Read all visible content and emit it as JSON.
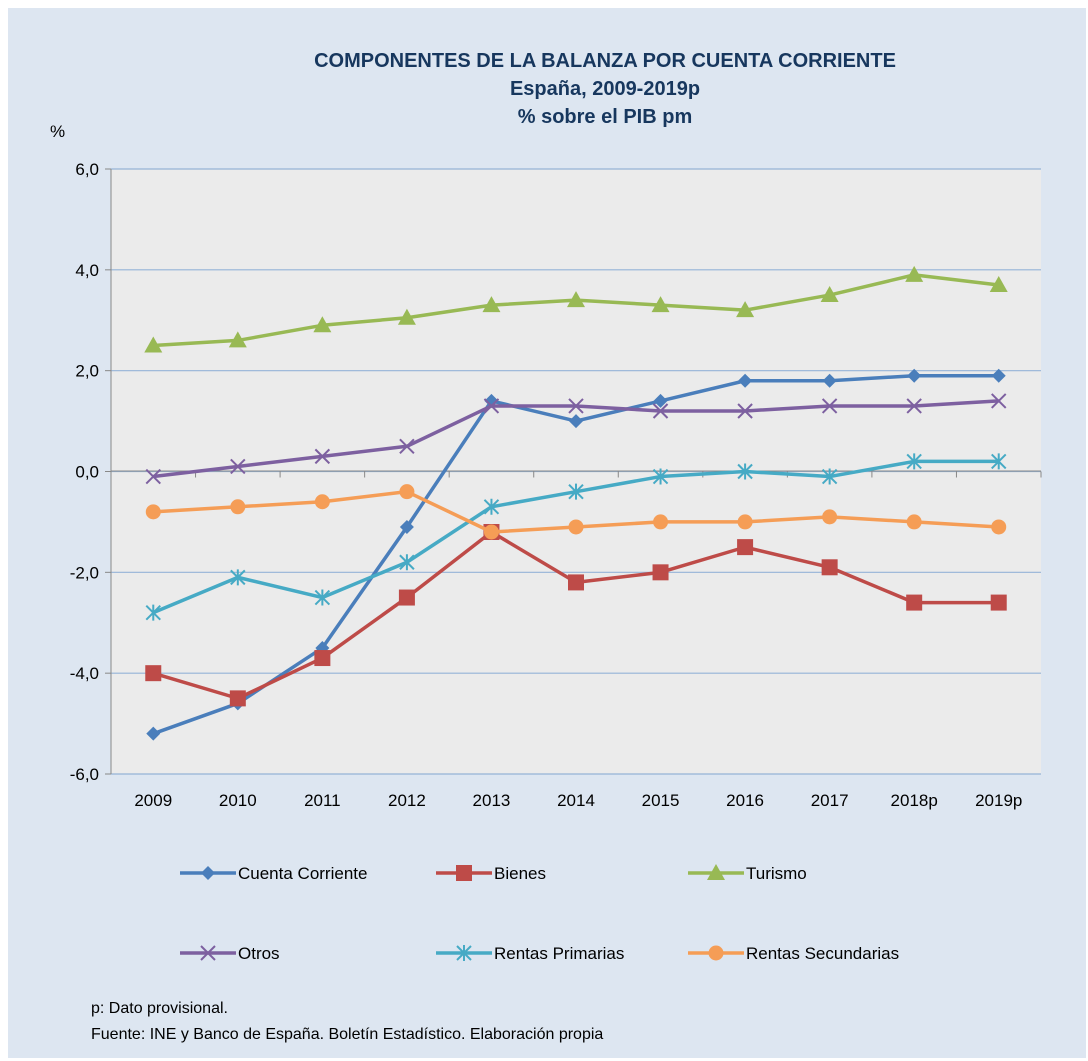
{
  "chart_data": {
    "type": "line",
    "title": [
      "COMPONENTES DE LA BALANZA POR CUENTA CORRIENTE",
      "España, 2009-2019p",
      "% sobre el PIB pm"
    ],
    "ylabel": "%",
    "xlabel": "",
    "ylim": [
      -6,
      6
    ],
    "y_ticks": [
      "6,0",
      "4,0",
      "2,0",
      "0,0",
      "-2,0",
      "-4,0",
      "-6,0"
    ],
    "y_tick_values": [
      6,
      4,
      2,
      0,
      -2,
      -4,
      -6
    ],
    "categories": [
      "2009",
      "2010",
      "2011",
      "2012",
      "2013",
      "2014",
      "2015",
      "2016",
      "2017",
      "2018p",
      "2019p"
    ],
    "grid": true,
    "legend_position": "bottom",
    "series": [
      {
        "name": "Cuenta Corriente",
        "color": "#4a7ebb",
        "marker": "diamond",
        "values": [
          -5.2,
          -4.6,
          -3.5,
          -1.1,
          1.4,
          1.0,
          1.4,
          1.8,
          1.8,
          1.9,
          1.9
        ]
      },
      {
        "name": "Bienes",
        "color": "#be4b48",
        "marker": "square",
        "values": [
          -4.0,
          -4.5,
          -3.7,
          -2.5,
          -1.2,
          -2.2,
          -2.0,
          -1.5,
          -1.9,
          -2.6,
          -2.6
        ]
      },
      {
        "name": "Turismo",
        "color": "#98b954",
        "marker": "triangle",
        "values": [
          2.5,
          2.6,
          2.9,
          3.05,
          3.3,
          3.4,
          3.3,
          3.2,
          3.5,
          3.9,
          3.7
        ]
      },
      {
        "name": "Otros",
        "color": "#7d60a0",
        "marker": "x",
        "values": [
          -0.1,
          0.1,
          0.3,
          0.5,
          1.3,
          1.3,
          1.2,
          1.2,
          1.3,
          1.3,
          1.4
        ]
      },
      {
        "name": "Rentas Primarias",
        "color": "#46aac5",
        "marker": "star",
        "values": [
          -2.8,
          -2.1,
          -2.5,
          -1.8,
          -0.7,
          -0.4,
          -0.1,
          0.0,
          -0.1,
          0.2,
          0.2
        ]
      },
      {
        "name": "Rentas Secundarias",
        "color": "#f59d56",
        "marker": "circle",
        "values": [
          -0.8,
          -0.7,
          -0.6,
          -0.4,
          -1.2,
          -1.1,
          -1.0,
          -1.0,
          -0.9,
          -1.0,
          -1.1
        ]
      }
    ]
  },
  "notes": {
    "provisional": "p: Dato provisional.",
    "source": "Fuente: INE y Banco de España. Boletín Estadístico. Elaboración propia"
  }
}
